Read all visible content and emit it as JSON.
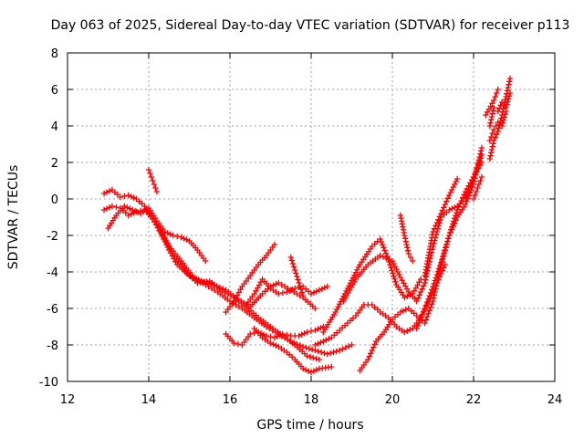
{
  "chart_data": {
    "type": "scatter",
    "title": "Day 063 of 2025, Sidereal Day-to-day VTEC variation (SDTVAR) for receiver p113",
    "xlabel": "GPS time / hours",
    "ylabel": "SDTVAR / TECUs",
    "xlim": [
      12,
      24
    ],
    "ylim": [
      -10,
      8
    ],
    "xticks": [
      12,
      14,
      16,
      18,
      20,
      22,
      24
    ],
    "yticks": [
      -10,
      -8,
      -6,
      -4,
      -2,
      0,
      2,
      4,
      6,
      8
    ],
    "grid": true,
    "marker": "plus",
    "color": "#ff0000",
    "series": [
      {
        "x": [
          12.9,
          13.1,
          13.3,
          13.5,
          13.7,
          13.9,
          14.1,
          14.3,
          14.5,
          14.7,
          15.0,
          15.3,
          15.6,
          15.9,
          16.2,
          16.5,
          16.8,
          17.0,
          17.2,
          17.5,
          17.8,
          18.1
        ],
        "values": [
          0.3,
          0.5,
          0.1,
          0.2,
          0.0,
          -0.4,
          -1.1,
          -1.9,
          -2.8,
          -3.6,
          -4.2,
          -4.5,
          -4.7,
          -5.0,
          -5.5,
          -5.9,
          -5.2,
          -4.8,
          -4.6,
          -5.0,
          -5.4,
          -6.0
        ]
      },
      {
        "x": [
          13.0,
          13.2,
          13.4,
          13.6,
          13.8,
          14.0,
          14.2,
          14.4,
          14.6,
          14.8,
          15.0,
          15.2,
          15.4
        ],
        "values": [
          -1.6,
          -0.9,
          -0.4,
          -0.6,
          -0.8,
          -0.5,
          -1.2,
          -1.8,
          -2.0,
          -2.1,
          -2.3,
          -2.8,
          -3.4
        ]
      },
      {
        "x": [
          12.9,
          13.1,
          13.3,
          13.5,
          13.7,
          13.9,
          14.1,
          14.3,
          14.5,
          14.8,
          15.1,
          15.4,
          15.7,
          16.0,
          16.3,
          16.6,
          16.9,
          17.2,
          17.5,
          17.8,
          18.1,
          18.4,
          18.7,
          19.0
        ],
        "values": [
          -0.6,
          -0.4,
          -0.5,
          -0.9,
          -0.7,
          -0.6,
          -1.1,
          -1.7,
          -2.6,
          -3.4,
          -4.3,
          -4.7,
          -5.1,
          -5.6,
          -6.0,
          -6.5,
          -7.0,
          -7.4,
          -7.8,
          -8.1,
          -8.3,
          -8.5,
          -8.3,
          -8.0
        ]
      },
      {
        "x": [
          14.0,
          14.1,
          14.2
        ],
        "values": [
          1.6,
          1.0,
          0.4
        ]
      },
      {
        "x": [
          14.3,
          14.6,
          14.9,
          15.2,
          15.5,
          15.8,
          16.1,
          16.4,
          16.7,
          17.0,
          17.3,
          17.6,
          17.9,
          18.2
        ],
        "values": [
          -1.8,
          -3.0,
          -4.0,
          -4.6,
          -4.5,
          -5.0,
          -5.4,
          -5.9,
          -6.5,
          -7.0,
          -7.5,
          -8.0,
          -8.6,
          -8.8
        ]
      },
      {
        "x": [
          15.9,
          16.1,
          16.3,
          16.5,
          16.7,
          16.9,
          17.1
        ],
        "values": [
          -6.2,
          -5.6,
          -4.8,
          -4.2,
          -3.6,
          -3.1,
          -2.5
        ]
      },
      {
        "x": [
          15.9,
          16.1,
          16.3,
          16.5,
          16.7,
          16.9,
          17.1,
          17.3,
          17.5,
          17.7,
          17.9,
          18.1,
          18.3
        ],
        "values": [
          -7.4,
          -7.9,
          -8.0,
          -7.4,
          -7.3,
          -7.5,
          -7.6,
          -7.4,
          -7.5,
          -7.5,
          -7.3,
          -7.2,
          -7.0
        ]
      },
      {
        "x": [
          16.4,
          16.6,
          16.8,
          17.0,
          17.2,
          17.4,
          17.6,
          17.8,
          18.0,
          18.2,
          18.4
        ],
        "values": [
          -5.8,
          -5.2,
          -4.4,
          -4.9,
          -5.2,
          -5.1,
          -4.9,
          -4.8,
          -5.2,
          -5.0,
          -4.8
        ]
      },
      {
        "x": [
          16.6,
          16.8,
          17.0,
          17.2,
          17.4,
          17.6,
          17.8,
          18.0,
          18.2,
          18.5
        ],
        "values": [
          -7.1,
          -7.6,
          -7.9,
          -8.1,
          -8.4,
          -8.8,
          -9.3,
          -9.5,
          -9.3,
          -9.2
        ]
      },
      {
        "x": [
          17.5,
          17.6,
          17.7,
          17.8
        ],
        "values": [
          -3.2,
          -3.9,
          -4.6,
          -5.3
        ]
      },
      {
        "x": [
          18.1,
          18.3,
          18.5,
          18.7,
          18.9,
          19.1,
          19.3,
          19.5,
          19.7,
          19.9,
          20.1,
          20.3,
          20.5,
          20.7,
          20.9,
          21.1,
          21.3
        ],
        "values": [
          -8.0,
          -7.8,
          -7.6,
          -7.2,
          -6.8,
          -6.4,
          -5.8,
          -5.8,
          -6.2,
          -6.5,
          -7.0,
          -7.3,
          -7.1,
          -6.5,
          -5.6,
          -4.6,
          -3.6
        ]
      },
      {
        "x": [
          18.3,
          18.6,
          18.9,
          19.2,
          19.5,
          19.7,
          19.9,
          20.1,
          20.3,
          20.5,
          20.7
        ],
        "values": [
          -7.3,
          -6.2,
          -4.9,
          -3.6,
          -2.6,
          -2.2,
          -3.3,
          -4.7,
          -5.4,
          -5.2,
          -4.4
        ]
      },
      {
        "x": [
          18.8,
          19.1,
          19.4,
          19.7,
          20.0,
          20.2,
          20.4,
          20.6,
          20.8,
          21.0,
          21.2,
          21.4,
          21.6,
          21.8,
          22.0,
          22.2
        ],
        "values": [
          -5.6,
          -4.4,
          -3.6,
          -3.1,
          -3.4,
          -4.3,
          -5.1,
          -5.6,
          -4.6,
          -2.6,
          -1.0,
          -0.6,
          -0.4,
          0.0,
          1.2,
          2.4
        ]
      },
      {
        "x": [
          19.2,
          19.4,
          19.6,
          19.8,
          20.0,
          20.2,
          20.4,
          20.6,
          20.8,
          21.0,
          21.2,
          21.4,
          21.6,
          21.8,
          22.0,
          22.2
        ],
        "values": [
          -9.4,
          -8.8,
          -7.8,
          -7.3,
          -6.6,
          -6.2,
          -6.0,
          -6.4,
          -6.8,
          -5.6,
          -3.6,
          -2.0,
          -1.0,
          -0.3,
          0.8,
          2.8
        ]
      },
      {
        "x": [
          20.2,
          20.3,
          20.4,
          20.5
        ],
        "values": [
          -0.9,
          -2.0,
          -3.0,
          -3.4
        ]
      },
      {
        "x": [
          20.6,
          20.8,
          21.0,
          21.2,
          21.4,
          21.6,
          21.8,
          22.0,
          22.2
        ],
        "values": [
          -7.1,
          -6.0,
          -4.8,
          -3.5,
          -2.0,
          -0.6,
          0.4,
          1.2,
          2.0
        ]
      },
      {
        "x": [
          20.8,
          21.0,
          21.2,
          21.4,
          21.6
        ],
        "values": [
          -4.2,
          -1.8,
          -0.8,
          0.2,
          1.1
        ]
      },
      {
        "x": [
          22.0,
          22.1,
          22.2
        ],
        "values": [
          0.0,
          0.6,
          1.2
        ]
      },
      {
        "x": [
          22.4,
          22.5,
          22.6,
          22.7,
          22.8,
          22.9
        ],
        "values": [
          2.2,
          3.2,
          3.7,
          4.6,
          5.6,
          6.6
        ]
      },
      {
        "x": [
          22.4,
          22.5,
          22.6,
          22.7,
          22.8,
          22.9
        ],
        "values": [
          4.0,
          5.0,
          4.8,
          5.3,
          5.0,
          5.8
        ]
      },
      {
        "x": [
          22.4,
          22.5,
          22.6,
          22.7,
          22.8
        ],
        "values": [
          3.2,
          3.8,
          4.2,
          4.0,
          4.8
        ]
      },
      {
        "x": [
          22.3,
          22.5,
          22.6
        ],
        "values": [
          4.6,
          5.4,
          6.0
        ]
      }
    ]
  }
}
